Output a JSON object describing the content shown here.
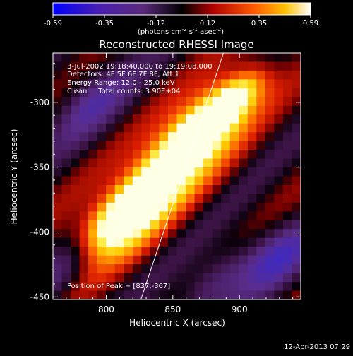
{
  "chart_data": {
    "type": "heatmap",
    "title": "Reconstructed RHESSI Image",
    "xlabel": "Heliocentric X (arcsec)",
    "ylabel": "Heliocentric Y (arcsec)",
    "xlim": [
      760,
      946
    ],
    "ylim": [
      -452,
      -262
    ],
    "x_ticks": [
      "800",
      "850",
      "900"
    ],
    "x_tick_values": [
      800,
      850,
      900
    ],
    "y_ticks": [
      "-300",
      "-350",
      "-400",
      "-450"
    ],
    "y_tick_values": [
      -300,
      -350,
      -400,
      -450
    ],
    "colorbar": {
      "range": [
        -0.59,
        0.59
      ],
      "tick_labels": [
        "-0.59",
        "-0.35",
        "-0.12",
        "0.12",
        "0.35",
        "0.59"
      ],
      "units_parts": [
        "(photons cm",
        "-2",
        " s",
        "-1",
        " asec",
        "-2",
        ")"
      ]
    },
    "annotations": [
      "3-Jul-2002 19:18:40.000 to 19:19:08.000",
      "Detectors: 4F 5F 6F 7F 8F, Att 1",
      "Energy Range: 12.0 - 25.0 keV",
      "Clean     Total counts: 3.90E+04"
    ],
    "peak_text": "Position of Peak = [837,-367]",
    "peak": [
      837,
      -367
    ],
    "limb": [
      [
        826,
        -452
      ],
      [
        888,
        -262
      ]
    ],
    "timestamp": "12-Apr-2013 07:29",
    "colors": {
      "background": "#000000",
      "text": "#ffffff"
    }
  }
}
